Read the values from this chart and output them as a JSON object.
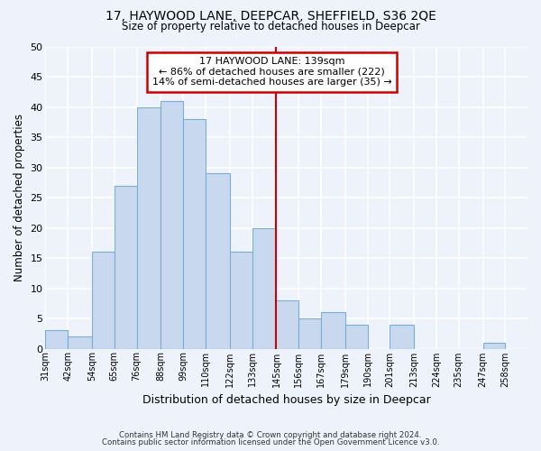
{
  "title1": "17, HAYWOOD LANE, DEEPCAR, SHEFFIELD, S36 2QE",
  "title2": "Size of property relative to detached houses in Deepcar",
  "xlabel": "Distribution of detached houses by size in Deepcar",
  "ylabel": "Number of detached properties",
  "bar_labels": [
    "31sqm",
    "42sqm",
    "54sqm",
    "65sqm",
    "76sqm",
    "88sqm",
    "99sqm",
    "110sqm",
    "122sqm",
    "133sqm",
    "145sqm",
    "156sqm",
    "167sqm",
    "179sqm",
    "190sqm",
    "201sqm",
    "213sqm",
    "224sqm",
    "235sqm",
    "247sqm",
    "258sqm"
  ],
  "bar_values": [
    3,
    2,
    16,
    27,
    40,
    41,
    38,
    29,
    16,
    20,
    8,
    5,
    6,
    4,
    0,
    4,
    0,
    0,
    0,
    1,
    0
  ],
  "bar_color": "#c8d8ee",
  "bar_edge_color": "#7aafd4",
  "background_color": "#eef2fa",
  "grid_color": "#ffffff",
  "vline_color": "#cc0000",
  "annotation_box_color": "#cc0000",
  "ylim": [
    0,
    50
  ],
  "yticks": [
    0,
    5,
    10,
    15,
    20,
    25,
    30,
    35,
    40,
    45,
    50
  ],
  "footer1": "Contains HM Land Registry data © Crown copyright and database right 2024.",
  "footer2": "Contains public sector information licensed under the Open Government Licence v3.0.",
  "bin_edges": [
    31,
    42,
    54,
    65,
    76,
    88,
    99,
    110,
    122,
    133,
    145,
    156,
    167,
    179,
    190,
    201,
    213,
    224,
    235,
    247,
    258,
    269
  ],
  "vline_x": 145,
  "annot_title": "17 HAYWOOD LANE: 139sqm",
  "annot_line1": "← 86% of detached houses are smaller (222)",
  "annot_line2": "14% of semi-detached houses are larger (35) →"
}
